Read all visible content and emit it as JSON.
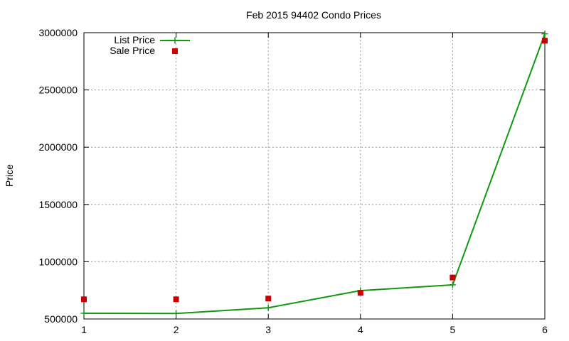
{
  "chart_data": {
    "type": "line",
    "title": "Feb 2015 94402 Condo Prices",
    "xlabel": "",
    "ylabel": "Price",
    "x": [
      1,
      2,
      3,
      4,
      5,
      6
    ],
    "xlim": [
      1,
      6
    ],
    "ylim": [
      500000,
      3000000
    ],
    "xticks": [
      "1",
      "2",
      "3",
      "4",
      "5",
      "6"
    ],
    "yticks": [
      "500000",
      "1000000",
      "1500000",
      "2000000",
      "2500000",
      "3000000"
    ],
    "grid": true,
    "legend_position": "top-left",
    "series": [
      {
        "name": "List Price",
        "style": "line+cross",
        "color": "#119911",
        "values": [
          550000,
          548000,
          598000,
          748000,
          798000,
          2990000
        ]
      },
      {
        "name": "Sale Price",
        "style": "square",
        "color": "#cc0000",
        "values": [
          672000,
          672000,
          678000,
          728000,
          862000,
          2930000
        ]
      }
    ]
  }
}
